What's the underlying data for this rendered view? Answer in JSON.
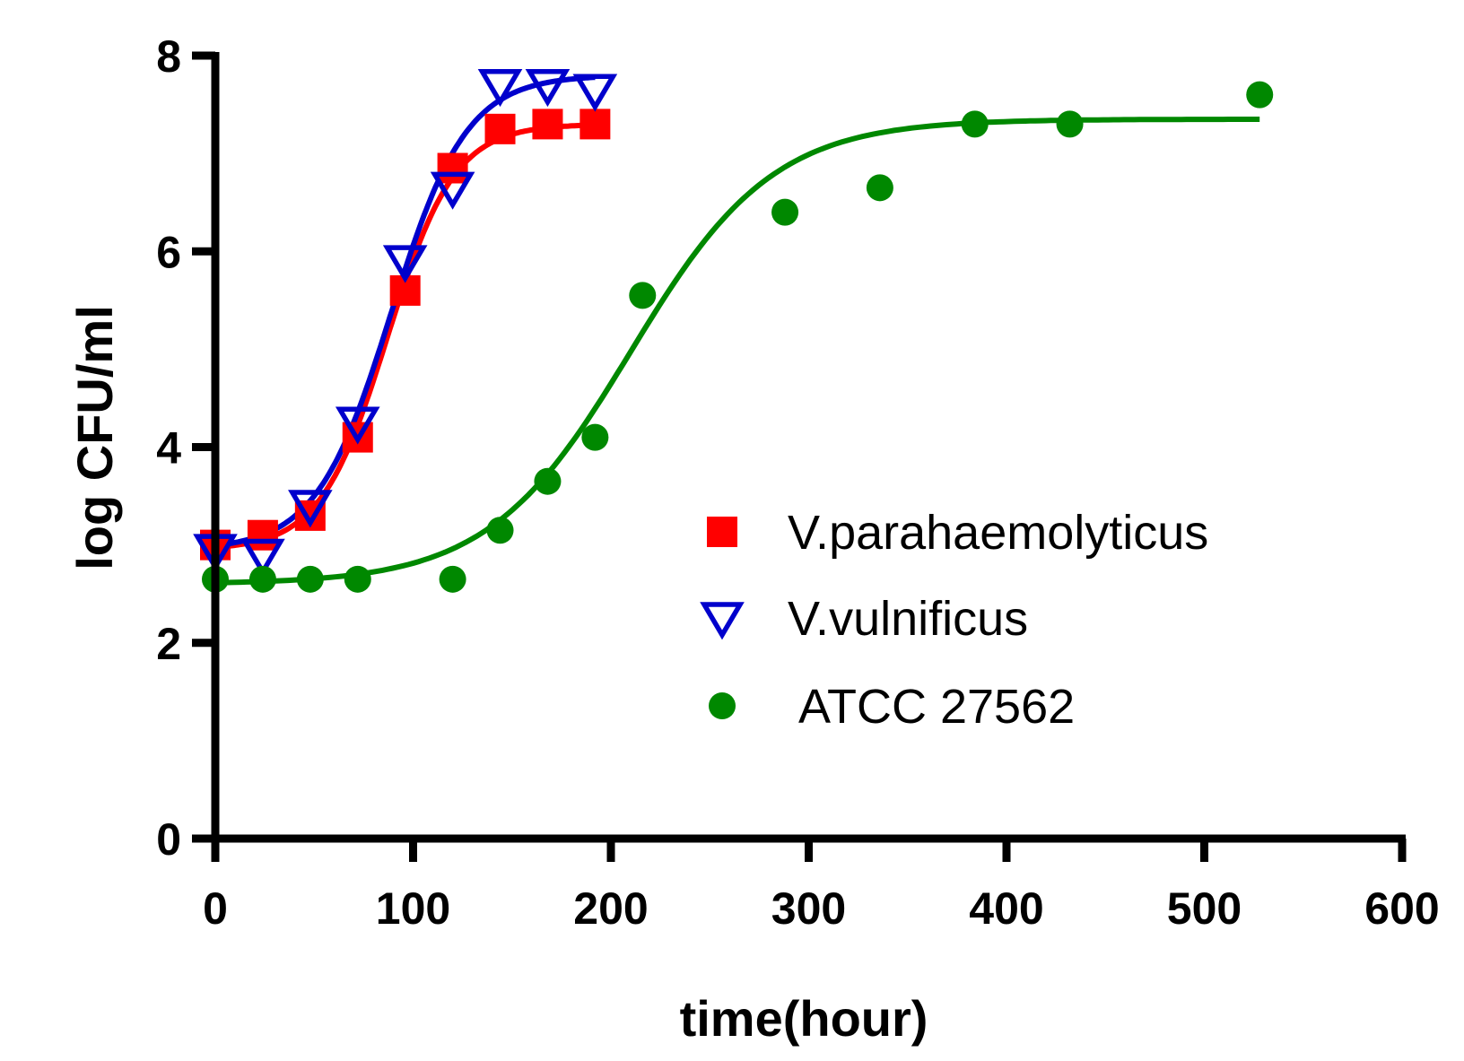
{
  "chart_data": {
    "type": "scatter",
    "title": "",
    "xlabel": "time(hour)",
    "ylabel": "log CFU/ml",
    "xlim": [
      0,
      600
    ],
    "ylim": [
      0,
      8
    ],
    "xticks": [
      0,
      100,
      200,
      300,
      400,
      500,
      600
    ],
    "yticks": [
      0,
      2,
      4,
      6,
      8
    ],
    "x_tick_labels": [
      "0",
      "100",
      "200",
      "300",
      "400",
      "500",
      "600"
    ],
    "y_tick_labels": [
      "0",
      "2",
      "4",
      "6",
      "8"
    ],
    "grid": false,
    "legend_position": "center-right",
    "series": [
      {
        "name": "V.parahaemolyticus",
        "marker": "square",
        "color": "#ff0000",
        "points": [
          [
            0,
            3.0
          ],
          [
            24,
            3.1
          ],
          [
            48,
            3.3
          ],
          [
            72,
            4.1
          ],
          [
            96,
            5.6
          ],
          [
            120,
            6.85
          ],
          [
            144,
            7.25
          ],
          [
            168,
            7.3
          ],
          [
            192,
            7.3
          ]
        ],
        "fit": {
          "bottom": 2.95,
          "top": 7.3,
          "x50": 87,
          "k": 17
        }
      },
      {
        "name": "V.vulnificus",
        "marker": "triangle-down",
        "color": "#0000cc",
        "points": [
          [
            0,
            2.95
          ],
          [
            24,
            2.9
          ],
          [
            48,
            3.4
          ],
          [
            72,
            4.25
          ],
          [
            96,
            5.9
          ],
          [
            120,
            6.65
          ],
          [
            144,
            7.7
          ],
          [
            168,
            7.7
          ],
          [
            192,
            7.65
          ]
        ],
        "fit": {
          "bottom": 2.95,
          "top": 7.8,
          "x50": 89,
          "k": 19
        }
      },
      {
        "name": "ATCC 27562",
        "marker": "circle",
        "color": "#008800",
        "points": [
          [
            0,
            2.65
          ],
          [
            24,
            2.65
          ],
          [
            48,
            2.65
          ],
          [
            72,
            2.65
          ],
          [
            120,
            2.65
          ],
          [
            144,
            3.15
          ],
          [
            168,
            3.65
          ],
          [
            192,
            4.1
          ],
          [
            216,
            5.55
          ],
          [
            288,
            6.4
          ],
          [
            336,
            6.65
          ],
          [
            384,
            7.3
          ],
          [
            432,
            7.3
          ],
          [
            528,
            7.6
          ]
        ],
        "fit": {
          "bottom": 2.6,
          "top": 7.35,
          "x50": 210,
          "k": 36
        }
      }
    ]
  }
}
